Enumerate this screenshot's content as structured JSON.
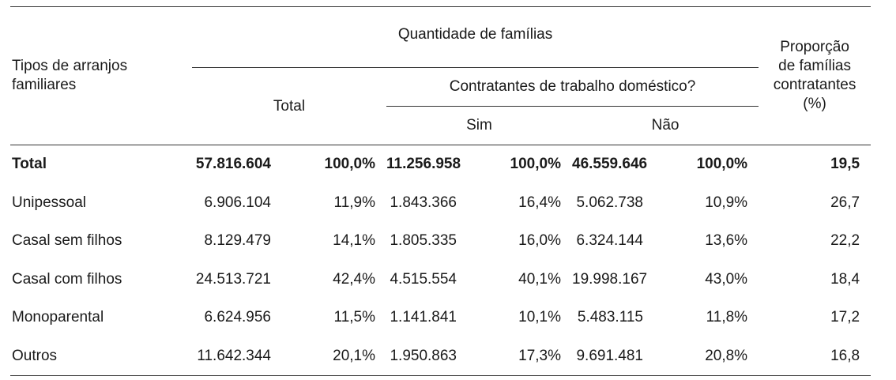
{
  "table": {
    "header": {
      "row_label": "Tipos de arranjos familiares",
      "row_label_line1": "Tipos de arranjos",
      "row_label_line2": "familiares",
      "group_label": "Quantidade de famílias",
      "total_label": "Total",
      "subgroup_label": "Contratantes de trabalho doméstico?",
      "sim_label": "Sim",
      "nao_label": "Não",
      "prop_line1": "Proporção",
      "prop_line2": "de famílias",
      "prop_line3": "contratantes",
      "prop_line4": "(%)"
    },
    "rows": [
      {
        "label": "Total",
        "total": "57.816.604",
        "total_pct": "100,0%",
        "sim": "11.256.958",
        "sim_pct": "100,0%",
        "nao": "46.559.646",
        "nao_pct": "100,0%",
        "prop": "19,5"
      },
      {
        "label": "Unipessoal",
        "total": "6.906.104",
        "total_pct": "11,9%",
        "sim": "1.843.366",
        "sim_pct": "16,4%",
        "nao": "5.062.738",
        "nao_pct": "10,9%",
        "prop": "26,7"
      },
      {
        "label": "Casal sem filhos",
        "total": "8.129.479",
        "total_pct": "14,1%",
        "sim": "1.805.335",
        "sim_pct": "16,0%",
        "nao": "6.324.144",
        "nao_pct": "13,6%",
        "prop": "22,2"
      },
      {
        "label": "Casal com filhos",
        "total": "24.513.721",
        "total_pct": "42,4%",
        "sim": "4.515.554",
        "sim_pct": "40,1%",
        "nao": "19.998.167",
        "nao_pct": "43,0%",
        "prop": "18,4"
      },
      {
        "label": "Monoparental",
        "total": "6.624.956",
        "total_pct": "11,5%",
        "sim": "1.141.841",
        "sim_pct": "10,1%",
        "nao": "5.483.115",
        "nao_pct": "11,8%",
        "prop": "17,2"
      },
      {
        "label": "Outros",
        "total": "11.642.344",
        "total_pct": "20,1%",
        "sim": "1.950.863",
        "sim_pct": "17,3%",
        "nao": "9.691.481",
        "nao_pct": "20,8%",
        "prop": "16,8"
      }
    ]
  }
}
